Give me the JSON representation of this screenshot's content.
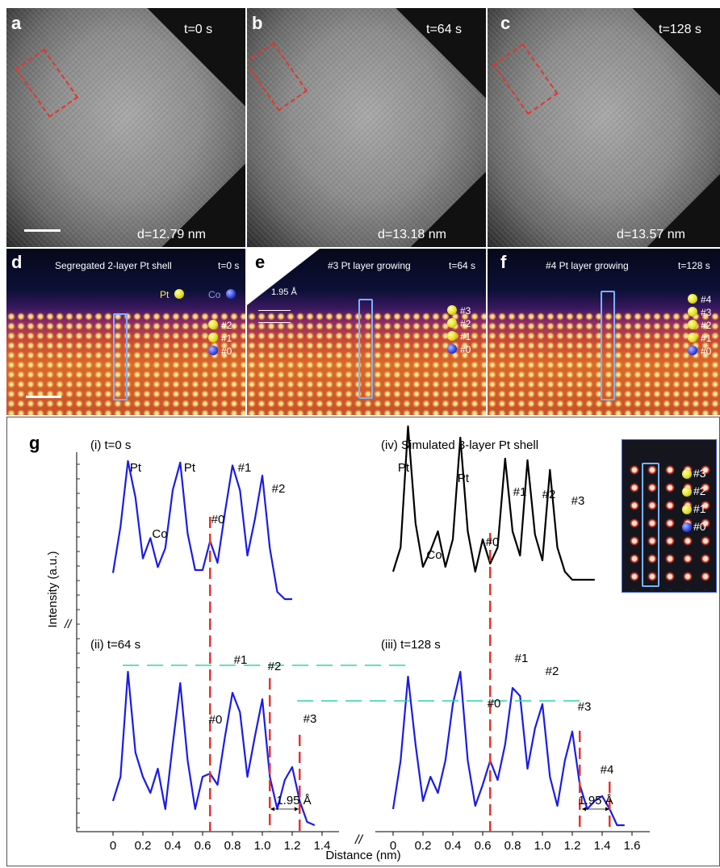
{
  "panels_top": [
    {
      "label": "a",
      "time": "t=0 s",
      "diameter": "d=12.79 nm"
    },
    {
      "label": "b",
      "time": "t=64 s",
      "diameter": "d=13.18 nm"
    },
    {
      "label": "c",
      "time": "t=128 s",
      "diameter": "d=13.57 nm"
    }
  ],
  "panels_mid": [
    {
      "label": "d",
      "title": "Segregated 2-layer Pt shell",
      "time": "t=0 s",
      "layers": [
        "#2",
        "#1",
        "#0"
      ]
    },
    {
      "label": "e",
      "title": "#3 Pt layer growing",
      "time": "t=64 s",
      "layers": [
        "#3",
        "#2",
        "#1",
        "#0"
      ],
      "spacing": "1.95 Å"
    },
    {
      "label": "f",
      "title": "#4 Pt layer growing",
      "time": "t=128 s",
      "layers": [
        "#4",
        "#3",
        "#2",
        "#1",
        "#0"
      ]
    }
  ],
  "legend_atoms": {
    "pt": "Pt",
    "co": "Co"
  },
  "panel_g": {
    "label": "g",
    "ylabel": "Intensity (a.u.)",
    "xlabel": "Distance (nm)",
    "break_mark": "//",
    "sim_layers": [
      "#3",
      "#2",
      "#1",
      "#0"
    ],
    "colors": {
      "measured": "#1b1be8",
      "simulated": "#000000",
      "marker": "#e8332a",
      "level": "#2bd6a3"
    }
  },
  "chart_data": [
    {
      "type": "line",
      "title": "(i) t=0 s",
      "x": [
        0.0,
        0.05,
        0.1,
        0.15,
        0.2,
        0.25,
        0.3,
        0.35,
        0.4,
        0.45,
        0.5,
        0.55,
        0.6,
        0.65,
        0.7,
        0.75,
        0.8,
        0.85,
        0.9,
        0.95,
        1.0,
        1.05,
        1.1,
        1.15,
        1.2
      ],
      "y": [
        0.18,
        0.5,
        0.95,
        0.7,
        0.28,
        0.42,
        0.22,
        0.35,
        0.75,
        0.94,
        0.45,
        0.2,
        0.2,
        0.4,
        0.25,
        0.6,
        0.92,
        0.75,
        0.3,
        0.55,
        0.85,
        0.35,
        0.05,
        0.0,
        0.0
      ],
      "annotations": [
        "Pt",
        "Co",
        "Pt",
        "#0",
        "#1",
        "#2"
      ]
    },
    {
      "type": "line",
      "title": "(iv) Simulated 3-layer Pt shell",
      "x": [
        0.0,
        0.05,
        0.1,
        0.15,
        0.2,
        0.25,
        0.3,
        0.35,
        0.4,
        0.45,
        0.5,
        0.55,
        0.6,
        0.65,
        0.7,
        0.75,
        0.8,
        0.85,
        0.9,
        0.95,
        1.0,
        1.05,
        1.1,
        1.15,
        1.2,
        1.25,
        1.3,
        1.35
      ],
      "y": [
        0.05,
        0.2,
        0.95,
        0.35,
        0.08,
        0.18,
        0.3,
        0.08,
        0.25,
        0.88,
        0.3,
        0.05,
        0.25,
        0.1,
        0.2,
        0.75,
        0.3,
        0.15,
        0.74,
        0.28,
        0.12,
        0.68,
        0.2,
        0.05,
        0.0,
        0.0,
        0.0,
        0.0
      ],
      "annotations": [
        "Pt",
        "Co",
        "Pt",
        "#0",
        "#1",
        "#2",
        "#3"
      ]
    },
    {
      "type": "line",
      "title": "(ii) t=64 s",
      "x": [
        0.0,
        0.05,
        0.1,
        0.15,
        0.2,
        0.25,
        0.3,
        0.35,
        0.4,
        0.45,
        0.5,
        0.55,
        0.6,
        0.65,
        0.7,
        0.75,
        0.8,
        0.85,
        0.9,
        0.95,
        1.0,
        1.05,
        1.1,
        1.15,
        1.2,
        1.25,
        1.3,
        1.35
      ],
      "y": [
        0.15,
        0.3,
        0.95,
        0.45,
        0.3,
        0.2,
        0.35,
        0.1,
        0.5,
        0.88,
        0.4,
        0.1,
        0.3,
        0.32,
        0.25,
        0.55,
        0.82,
        0.7,
        0.3,
        0.55,
        0.78,
        0.3,
        0.1,
        0.28,
        0.36,
        0.15,
        0.02,
        0.0
      ],
      "annotations": [
        "#0",
        "#1",
        "#2",
        "#3",
        "1.95 Å"
      ]
    },
    {
      "type": "line",
      "title": "(iii) t=128 s",
      "x": [
        0.0,
        0.05,
        0.1,
        0.15,
        0.2,
        0.25,
        0.3,
        0.35,
        0.4,
        0.45,
        0.5,
        0.55,
        0.6,
        0.65,
        0.7,
        0.75,
        0.8,
        0.85,
        0.9,
        0.95,
        1.0,
        1.05,
        1.1,
        1.15,
        1.2,
        1.25,
        1.3,
        1.35,
        1.4,
        1.45,
        1.5,
        1.55
      ],
      "y": [
        0.1,
        0.4,
        0.92,
        0.5,
        0.15,
        0.3,
        0.2,
        0.4,
        0.75,
        0.95,
        0.4,
        0.12,
        0.25,
        0.4,
        0.28,
        0.5,
        0.85,
        0.8,
        0.35,
        0.6,
        0.75,
        0.3,
        0.12,
        0.4,
        0.58,
        0.25,
        0.1,
        0.15,
        0.18,
        0.1,
        0.0,
        0.0
      ],
      "annotations": [
        "#0",
        "#1",
        "#2",
        "#3",
        "#4",
        "1.95 Å"
      ]
    },
    {
      "type": "line",
      "title": "",
      "xticks_left": [
        "0",
        "0.2",
        "0.4",
        "0.6",
        "0.8",
        "1.0",
        "1.2",
        "1.4"
      ],
      "xticks_right": [
        "0",
        "0.2",
        "0.4",
        "0.6",
        "0.8",
        "1.0",
        "1.2",
        "1.4",
        "1.6"
      ],
      "xlabel": "Distance (nm)",
      "ylabel": "Intensity (a.u.)"
    }
  ]
}
